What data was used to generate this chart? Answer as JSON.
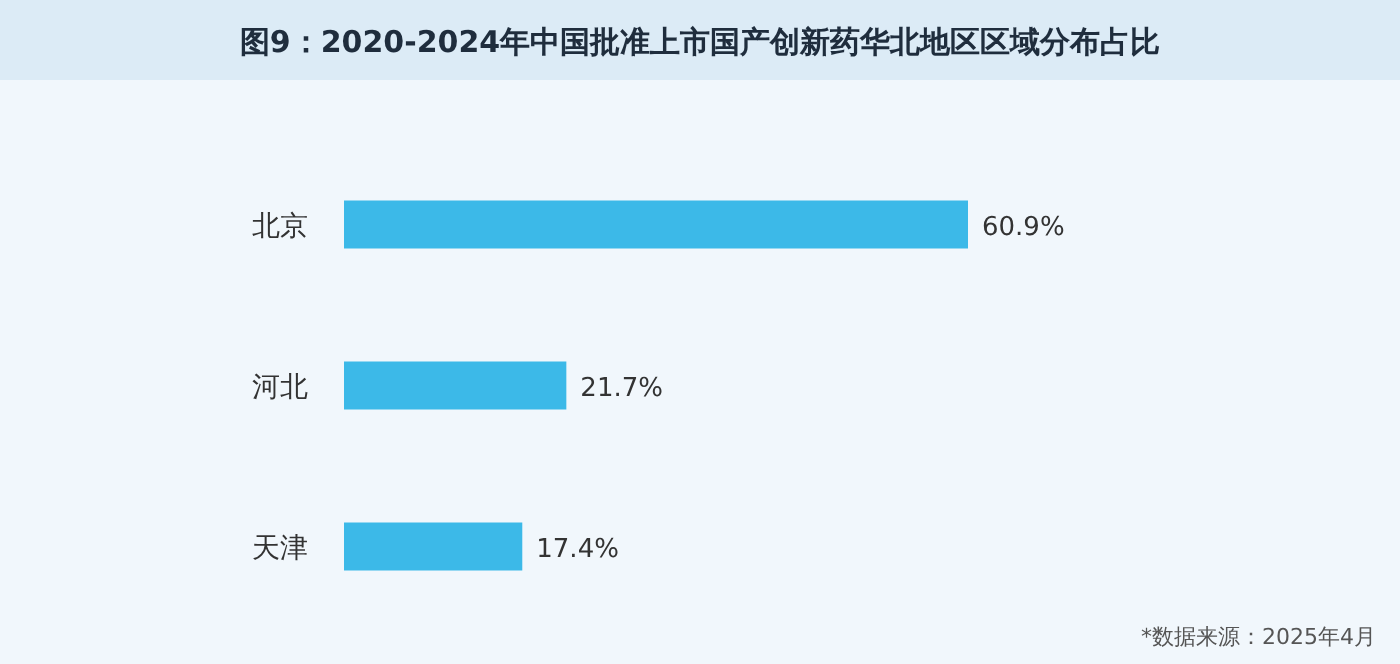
{
  "chart_data": {
    "type": "bar",
    "orientation": "horizontal",
    "title": "图9：2020-2024年中国批准上市国产创新药华北地区区域分布占比",
    "categories": [
      "北京",
      "河北",
      "天津"
    ],
    "values": [
      60.9,
      21.7,
      17.4
    ],
    "value_labels": [
      "60.9%",
      "21.7%",
      "17.4%"
    ],
    "color": "#3cb9e8",
    "annotations": [
      "*数据来源：2025年4月"
    ]
  }
}
